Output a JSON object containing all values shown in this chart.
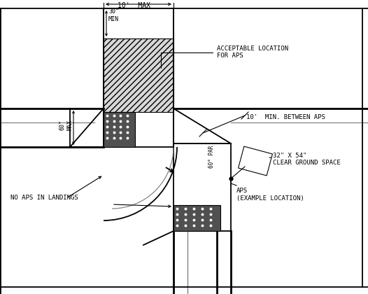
{
  "bg_color": "#ffffff",
  "line_color": "#000000",
  "annotations": {
    "10ft_max": "10'  MAX",
    "30in_min": "30\"\nMIN",
    "60in_max": "60\"\nMAX",
    "acceptable_aps": "ACCEPTABLE LOCATION\nFOR APS",
    "10ft_min_between": "10'  MIN. BETWEEN APS",
    "60par": "60° PAR",
    "32x54": "32\" X 54\"",
    "clear_ground": "CLEAR GROUND SPACE",
    "aps_label": "APS\n(EXAMPLE LOCATION)",
    "no_aps": "NO APS IN LANDINGS"
  },
  "colors": {
    "hatch_fill": "#d8d8d8",
    "tactile_dark": "#505050",
    "road_gray": "#b0b0b0",
    "line_thin": "#555555"
  }
}
